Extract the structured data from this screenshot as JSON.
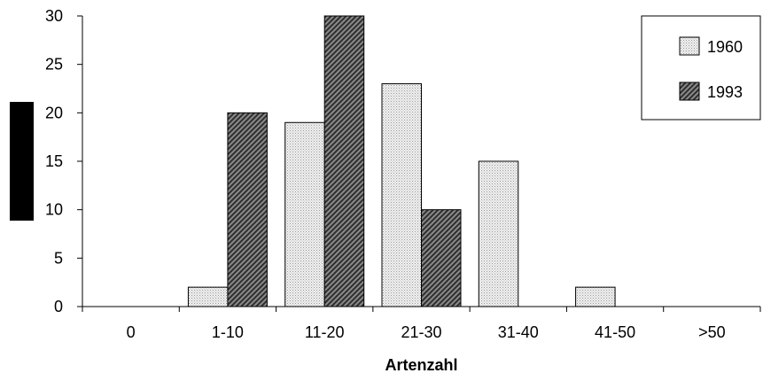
{
  "chart_data": {
    "type": "bar",
    "categories": [
      "0",
      "1-10",
      "11-20",
      "21-30",
      "31-40",
      "41-50",
      ">50"
    ],
    "series": [
      {
        "name": "1960",
        "values": [
          0,
          2,
          19,
          23,
          15,
          2,
          0
        ],
        "color": "#e6e6e6",
        "pattern": "light-dotted"
      },
      {
        "name": "1993",
        "values": [
          0,
          20,
          30,
          10,
          0,
          0,
          0
        ],
        "color": "#5a5a5a",
        "pattern": "dark-diagonal"
      }
    ],
    "xlabel": "Artenzahl",
    "ylabel": "",
    "ylim": [
      0,
      30
    ],
    "yticks": [
      "0",
      "5",
      "10",
      "15",
      "20",
      "25",
      "30"
    ],
    "grid": false,
    "legend_position": "top-right"
  }
}
